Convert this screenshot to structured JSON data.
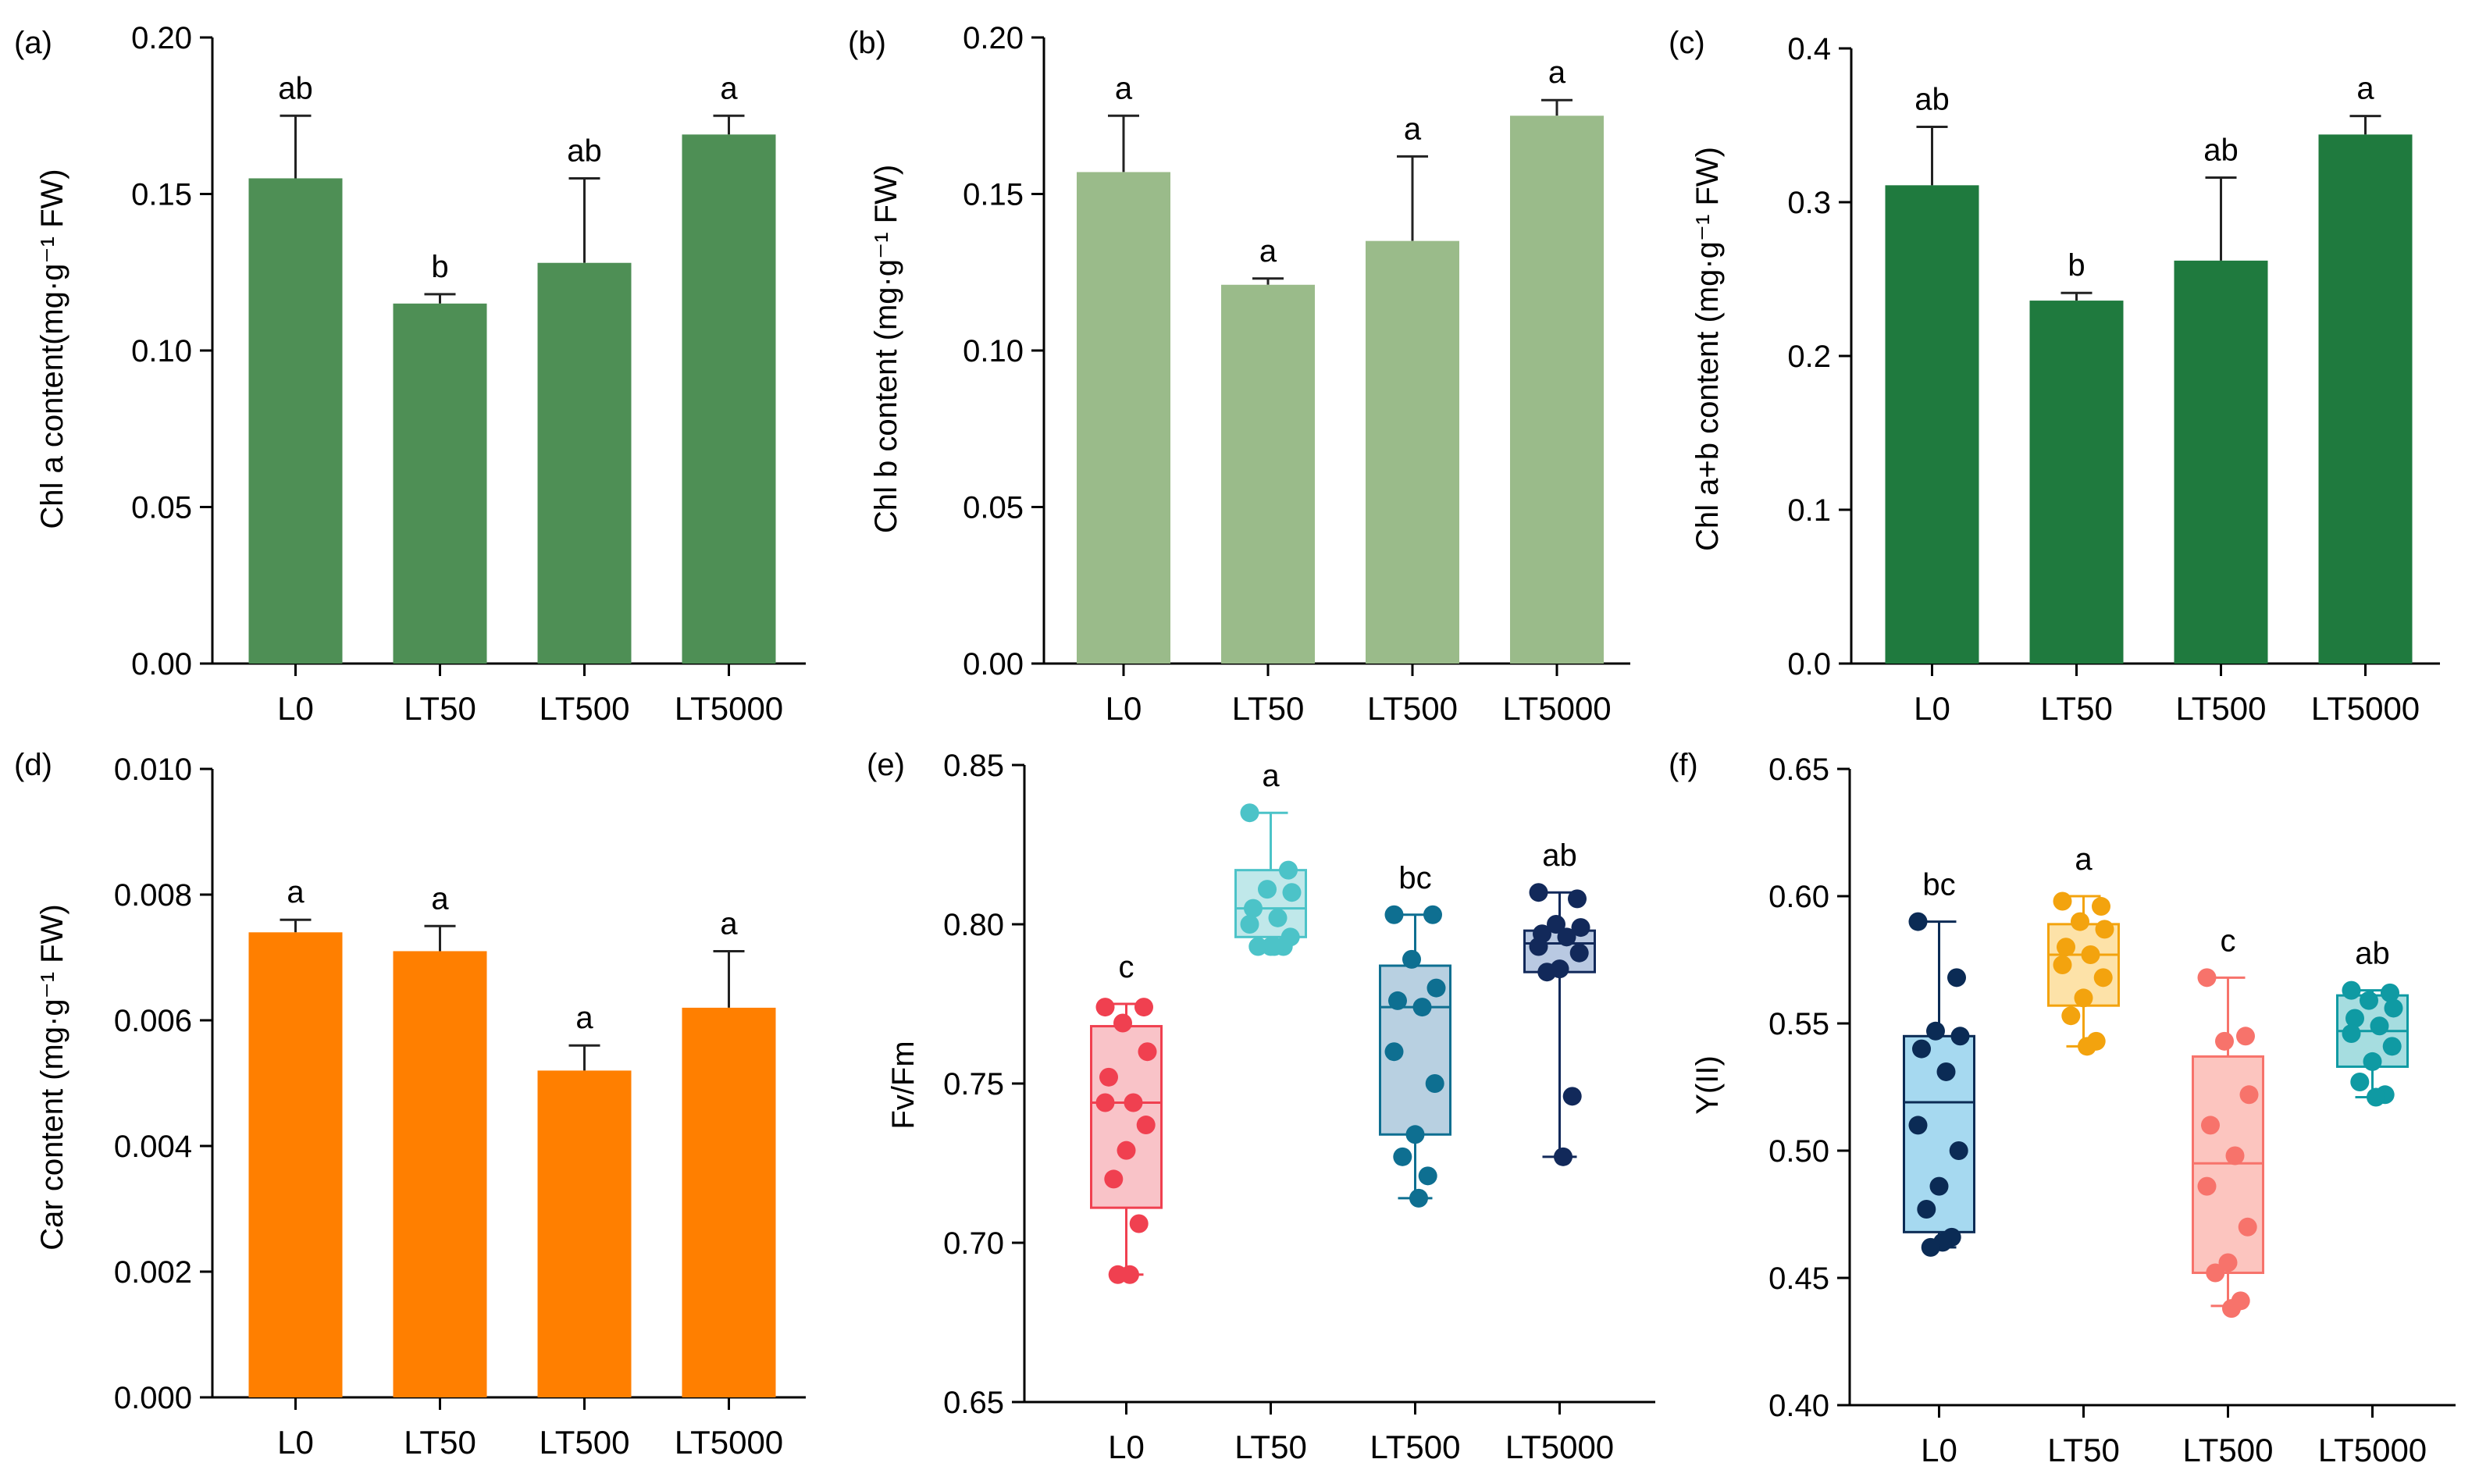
{
  "chart_data": [
    {
      "panel": "(a)",
      "type": "bar",
      "categories": [
        "L0",
        "LT50",
        "LT500",
        "LT5000"
      ],
      "values": [
        0.155,
        0.115,
        0.128,
        0.169
      ],
      "errors": [
        0.02,
        0.003,
        0.027,
        0.006
      ],
      "letters": [
        "ab",
        "b",
        "ab",
        "a"
      ],
      "ylabel": "Chl a content(mg·g⁻¹ FW)",
      "ylim": [
        0,
        0.2
      ],
      "yticks": [
        "0.00",
        "0.05",
        "0.10",
        "0.15",
        "0.20"
      ],
      "color": "#4e8f55"
    },
    {
      "panel": "(b)",
      "type": "bar",
      "categories": [
        "L0",
        "LT50",
        "LT500",
        "LT5000"
      ],
      "values": [
        0.157,
        0.121,
        0.135,
        0.175
      ],
      "errors": [
        0.018,
        0.002,
        0.027,
        0.005
      ],
      "letters": [
        "a",
        "a",
        "a",
        "a"
      ],
      "ylabel": "Chl b content (mg·g⁻¹ FW)",
      "ylim": [
        0,
        0.2
      ],
      "yticks": [
        "0.00",
        "0.05",
        "0.10",
        "0.15",
        "0.20"
      ],
      "color": "#9abb8a"
    },
    {
      "panel": "(c)",
      "type": "bar",
      "categories": [
        "L0",
        "LT50",
        "LT500",
        "LT5000"
      ],
      "values": [
        0.311,
        0.236,
        0.262,
        0.344
      ],
      "errors": [
        0.038,
        0.005,
        0.054,
        0.012
      ],
      "letters": [
        "ab",
        "b",
        "ab",
        "a"
      ],
      "ylabel": "Chl a+b content (mg·g⁻¹ FW)",
      "ylim": [
        0,
        0.4
      ],
      "yticks": [
        "0.0",
        "0.1",
        "0.2",
        "0.3",
        "0.4"
      ],
      "color": "#1f7a3e"
    },
    {
      "panel": "(d)",
      "type": "bar",
      "categories": [
        "L0",
        "LT50",
        "LT500",
        "LT5000"
      ],
      "values": [
        0.0074,
        0.0071,
        0.0052,
        0.0062
      ],
      "errors": [
        0.0002,
        0.0004,
        0.0004,
        0.0009
      ],
      "letters": [
        "a",
        "a",
        "a",
        "a"
      ],
      "ylabel": "Car content (mg·g⁻¹ FW)",
      "ylim": [
        0,
        0.01
      ],
      "yticks": [
        "0.000",
        "0.002",
        "0.004",
        "0.006",
        "0.008",
        "0.010"
      ],
      "color": "#ff7f00"
    },
    {
      "panel": "(e)",
      "type": "box",
      "categories": [
        "L0",
        "LT50",
        "LT500",
        "LT5000"
      ],
      "ylabel": "Fv/Fm",
      "ylim": [
        0.65,
        0.85
      ],
      "yticks": [
        "0.65",
        "0.70",
        "0.75",
        "0.80",
        "0.85"
      ],
      "letters": [
        "c",
        "a",
        "bc",
        "ab"
      ],
      "boxes": [
        {
          "min": 0.69,
          "q1": 0.711,
          "median": 0.744,
          "q3": 0.768,
          "max": 0.775,
          "points": [
            0.774,
            0.774,
            0.769,
            0.76,
            0.752,
            0.744,
            0.744,
            0.737,
            0.729,
            0.72,
            0.706,
            0.69,
            0.69
          ],
          "color": "#f04050",
          "fill": "#f9c3c8"
        },
        {
          "min": 0.793,
          "q1": 0.796,
          "median": 0.805,
          "q3": 0.817,
          "max": 0.835,
          "points": [
            0.835,
            0.817,
            0.811,
            0.81,
            0.805,
            0.802,
            0.8,
            0.796,
            0.793,
            0.793,
            0.793,
            0.793
          ],
          "color": "#4cc3c8",
          "fill": "#c0e8ea"
        },
        {
          "min": 0.714,
          "q1": 0.734,
          "median": 0.774,
          "q3": 0.787,
          "max": 0.803,
          "points": [
            0.803,
            0.803,
            0.789,
            0.78,
            0.776,
            0.774,
            0.76,
            0.75,
            0.734,
            0.727,
            0.721,
            0.714
          ],
          "color": "#0e6f91",
          "fill": "#b8d0e1"
        },
        {
          "min": 0.727,
          "q1": 0.785,
          "median": 0.794,
          "q3": 0.798,
          "max": 0.81,
          "points": [
            0.81,
            0.808,
            0.8,
            0.799,
            0.797,
            0.796,
            0.793,
            0.791,
            0.786,
            0.785,
            0.746,
            0.727
          ],
          "color": "#12295a",
          "fill": "#b9c9e2"
        }
      ]
    },
    {
      "panel": "(f)",
      "type": "box",
      "categories": [
        "L0",
        "LT50",
        "LT500",
        "LT5000"
      ],
      "ylabel": "Y(II)",
      "ylim": [
        0.4,
        0.65
      ],
      "yticks": [
        "0.40",
        "0.45",
        "0.50",
        "0.55",
        "0.60",
        "0.65"
      ],
      "letters": [
        "bc",
        "a",
        "c",
        "ab"
      ],
      "boxes": [
        {
          "min": 0.462,
          "q1": 0.468,
          "median": 0.519,
          "q3": 0.545,
          "max": 0.59,
          "points": [
            0.59,
            0.568,
            0.547,
            0.545,
            0.54,
            0.531,
            0.51,
            0.5,
            0.486,
            0.477,
            0.466,
            0.464,
            0.462
          ],
          "color": "#0b2b55",
          "fill": "#a6d9f0"
        },
        {
          "min": 0.541,
          "q1": 0.557,
          "median": 0.577,
          "q3": 0.589,
          "max": 0.6,
          "points": [
            0.598,
            0.596,
            0.59,
            0.587,
            0.58,
            0.577,
            0.573,
            0.568,
            0.56,
            0.553,
            0.543,
            0.541
          ],
          "color": "#f3a30e",
          "fill": "#fde2a8"
        },
        {
          "min": 0.439,
          "q1": 0.452,
          "median": 0.495,
          "q3": 0.537,
          "max": 0.568,
          "points": [
            0.568,
            0.545,
            0.543,
            0.522,
            0.51,
            0.498,
            0.486,
            0.47,
            0.456,
            0.452,
            0.441,
            0.438
          ],
          "color": "#f7736b",
          "fill": "#fcc5bf"
        },
        {
          "min": 0.521,
          "q1": 0.533,
          "median": 0.547,
          "q3": 0.561,
          "max": 0.563,
          "points": [
            0.563,
            0.562,
            0.559,
            0.556,
            0.552,
            0.549,
            0.546,
            0.541,
            0.535,
            0.527,
            0.522,
            0.521
          ],
          "color": "#0f9aa3",
          "fill": "#a6dde0"
        }
      ]
    }
  ]
}
